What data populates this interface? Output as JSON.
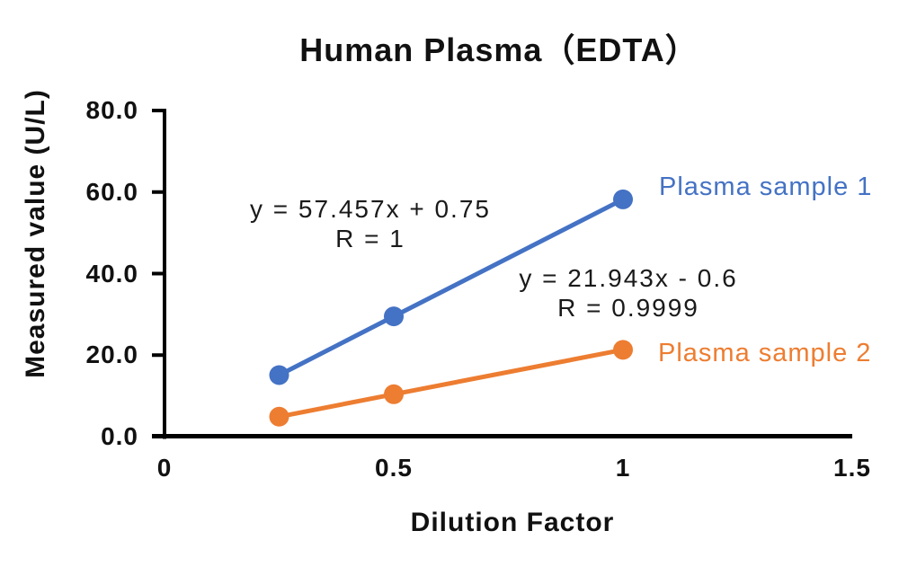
{
  "chart_data": {
    "type": "line",
    "title": "Human Plasma（EDTA）",
    "xlabel": "Dilution Factor",
    "ylabel": "Measured value (U/L)",
    "xlim": [
      0,
      1.5
    ],
    "ylim": [
      0,
      80
    ],
    "grid": false,
    "legend": "series-labels-right-of-last-point",
    "x_ticks": [
      {
        "value": 0,
        "label": "0"
      },
      {
        "value": 0.5,
        "label": "0.5"
      },
      {
        "value": 1,
        "label": "1"
      },
      {
        "value": 1.5,
        "label": "1.5"
      }
    ],
    "y_ticks": [
      {
        "value": 0,
        "label": "0.0"
      },
      {
        "value": 20,
        "label": "20.0"
      },
      {
        "value": 40,
        "label": "40.0"
      },
      {
        "value": 60,
        "label": "60.0"
      },
      {
        "value": 80,
        "label": "80.0"
      }
    ],
    "series": [
      {
        "name": "Plasma sample 1",
        "color": "#4472C4",
        "x": [
          0.25,
          0.5,
          1
        ],
        "y": [
          15.1,
          29.5,
          58.2
        ],
        "trendline_equation": "y = 57.457x + 0.75",
        "trendline_r": "R = 1"
      },
      {
        "name": "Plasma sample 2",
        "color": "#ED7D31",
        "x": [
          0.25,
          0.5,
          1
        ],
        "y": [
          4.9,
          10.4,
          21.3
        ],
        "trendline_equation": "y = 21.943x - 0.6",
        "trendline_r": "R = 0.9999"
      }
    ],
    "axis_color": "#000000"
  }
}
